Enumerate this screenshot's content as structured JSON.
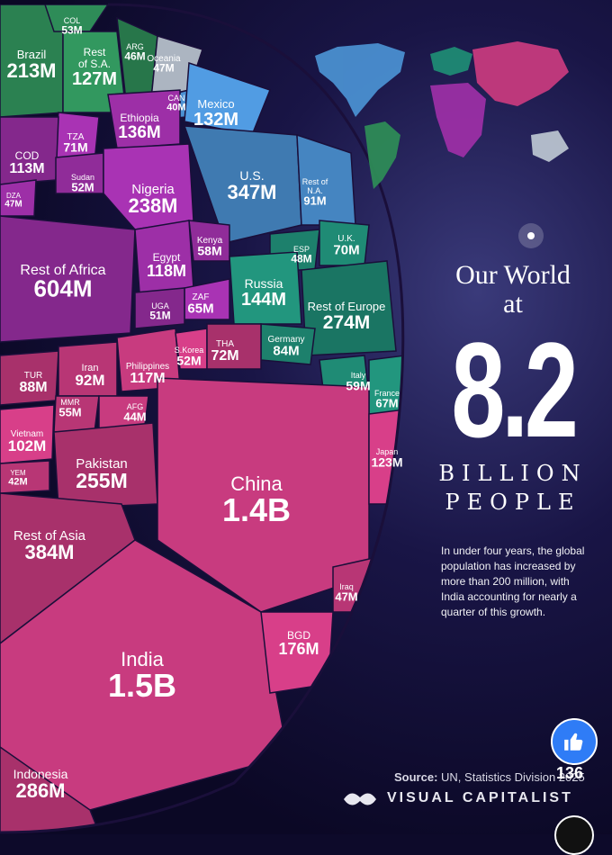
{
  "header": {
    "title_line1": "Our World",
    "title_line2": "at",
    "big_number": "8.2",
    "unit_line1": "BILLION",
    "unit_line2": "PEOPLE"
  },
  "description": "In under four years, the global population has increased by more than 200 million, with India accounting for nearly a quarter of this growth.",
  "source_label": "Source:",
  "source_text": "UN, Statistics Division 2025",
  "brand": "VISUAL CAPITALIST",
  "social": {
    "like_count": "136",
    "like_icon": "thumbs-up-icon",
    "more_icon": "more-icon"
  },
  "colors": {
    "americas_south": "#2e8b57",
    "americas_north": "#4a8fd0",
    "oceania": "#b9c3cf",
    "africa": "#9b2fa5",
    "europe": "#1f8a74",
    "asia": "#c63a7e"
  },
  "chart_data": {
    "type": "voronoi-treemap",
    "title": "Our World at 8.2 Billion People",
    "total": "8.2B",
    "regions": [
      {
        "name": "South America",
        "cells": [
          {
            "name": "Brazil",
            "value": "213M"
          },
          {
            "name": "COL",
            "value": "53M"
          },
          {
            "name": "Rest of S.A.",
            "value": "127M"
          },
          {
            "name": "ARG",
            "value": "46M"
          }
        ]
      },
      {
        "name": "Oceania",
        "cells": [
          {
            "name": "Oceania",
            "value": "47M"
          }
        ]
      },
      {
        "name": "North America",
        "cells": [
          {
            "name": "CAN",
            "value": "40M"
          },
          {
            "name": "Mexico",
            "value": "132M"
          },
          {
            "name": "U.S.",
            "value": "347M"
          },
          {
            "name": "Rest of N.A.",
            "value": "91M"
          }
        ]
      },
      {
        "name": "Africa",
        "cells": [
          {
            "name": "Ethiopia",
            "value": "136M"
          },
          {
            "name": "TZA",
            "value": "71M"
          },
          {
            "name": "COD",
            "value": "113M"
          },
          {
            "name": "Sudan",
            "value": "52M"
          },
          {
            "name": "DZA",
            "value": "47M"
          },
          {
            "name": "Nigeria",
            "value": "238M"
          },
          {
            "name": "Rest of Africa",
            "value": "604M"
          },
          {
            "name": "Kenya",
            "value": "58M"
          },
          {
            "name": "Egypt",
            "value": "118M"
          },
          {
            "name": "ZAF",
            "value": "65M"
          },
          {
            "name": "UGA",
            "value": "51M"
          }
        ]
      },
      {
        "name": "Europe",
        "cells": [
          {
            "name": "ESP",
            "value": "48M"
          },
          {
            "name": "U.K.",
            "value": "70M"
          },
          {
            "name": "Russia",
            "value": "144M"
          },
          {
            "name": "Rest of Europe",
            "value": "274M"
          },
          {
            "name": "Germany",
            "value": "84M"
          },
          {
            "name": "Italy",
            "value": "59M"
          },
          {
            "name": "France",
            "value": "67M"
          }
        ]
      },
      {
        "name": "Asia",
        "cells": [
          {
            "name": "TUR",
            "value": "88M"
          },
          {
            "name": "Iran",
            "value": "92M"
          },
          {
            "name": "Philippines",
            "value": "117M"
          },
          {
            "name": "S.Korea",
            "value": "52M"
          },
          {
            "name": "THA",
            "value": "72M"
          },
          {
            "name": "MMR",
            "value": "55M"
          },
          {
            "name": "AFG",
            "value": "44M"
          },
          {
            "name": "Vietnam",
            "value": "102M"
          },
          {
            "name": "Pakistan",
            "value": "255M"
          },
          {
            "name": "YEM",
            "value": "42M"
          },
          {
            "name": "China",
            "value": "1.4B"
          },
          {
            "name": "Japan",
            "value": "123M"
          },
          {
            "name": "Rest of Asia",
            "value": "384M"
          },
          {
            "name": "Iraq",
            "value": "47M"
          },
          {
            "name": "India",
            "value": "1.5B"
          },
          {
            "name": "BGD",
            "value": "176M"
          },
          {
            "name": "Indonesia",
            "value": "286M"
          }
        ]
      }
    ]
  }
}
